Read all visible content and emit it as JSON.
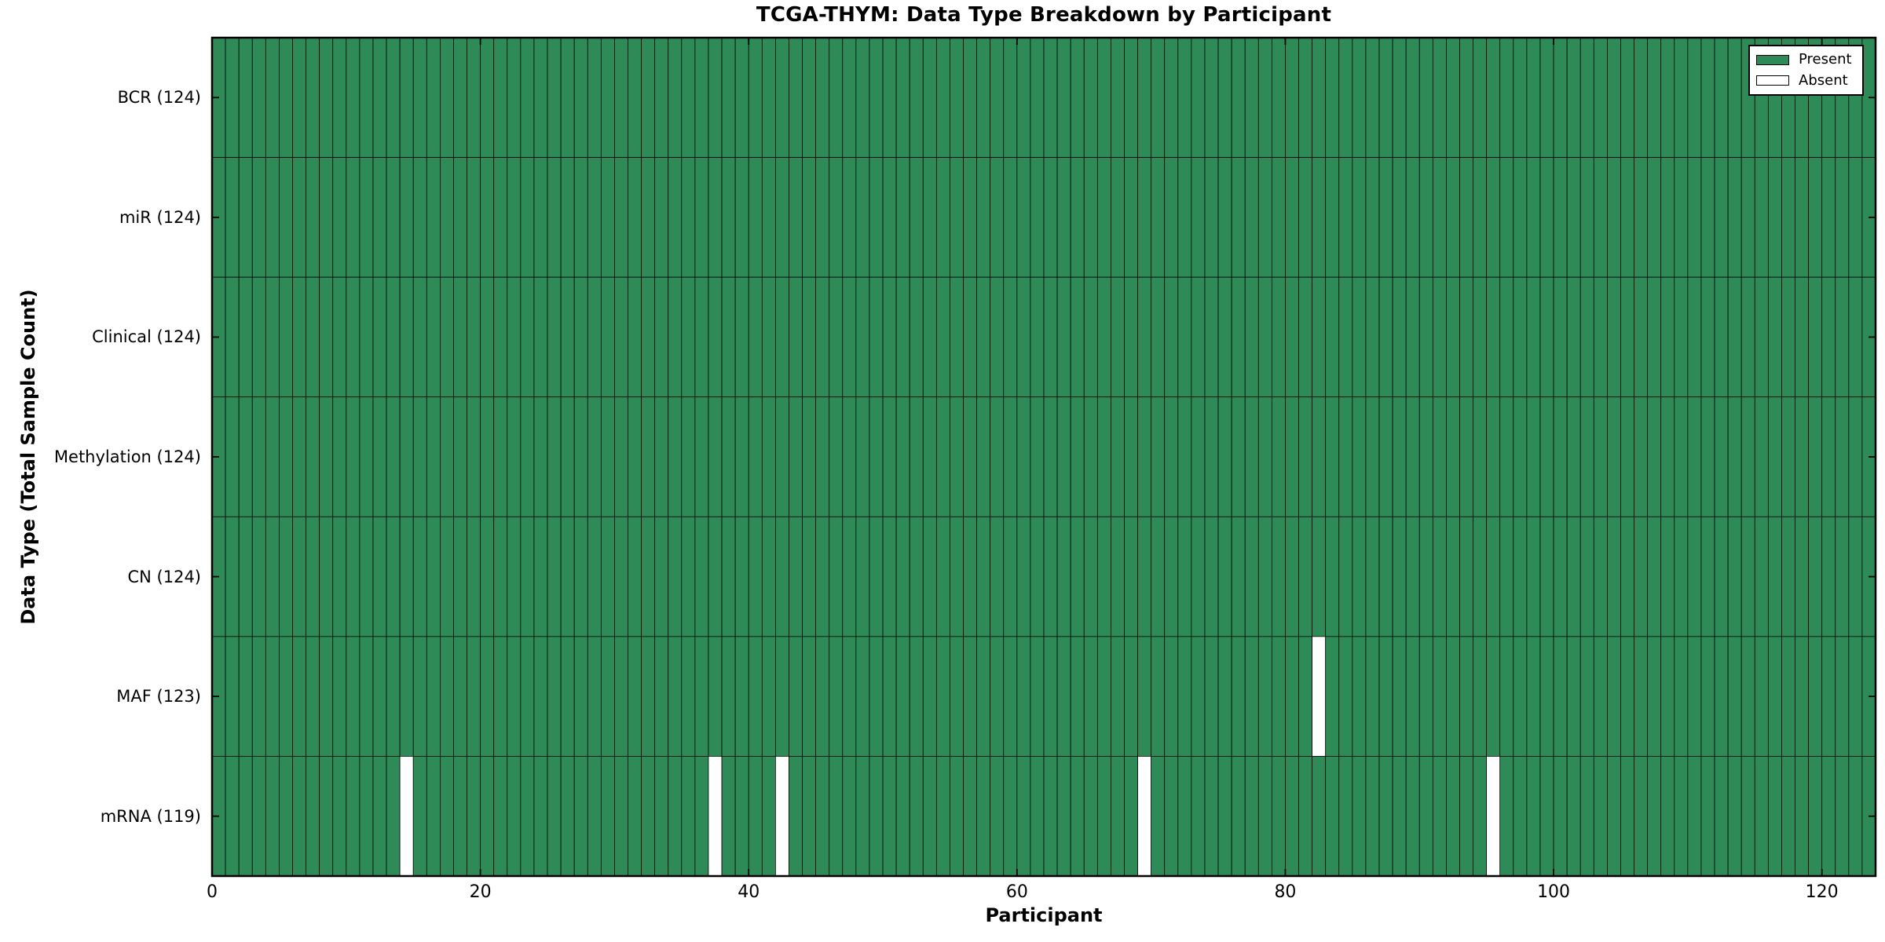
{
  "chart_data": {
    "type": "heatmap",
    "title": "TCGA-THYM: Data Type Breakdown by Participant",
    "xlabel": "Participant",
    "ylabel": "Data Type (Total Sample Count)",
    "x_ticks": [
      0,
      20,
      40,
      60,
      80,
      100,
      120
    ],
    "xlim": [
      0,
      124
    ],
    "n_participants": 124,
    "rows": [
      {
        "label": "BCR (124)",
        "data_type": "BCR",
        "total_samples": 124,
        "absent_participants": []
      },
      {
        "label": "miR (124)",
        "data_type": "miR",
        "total_samples": 124,
        "absent_participants": []
      },
      {
        "label": "Clinical (124)",
        "data_type": "Clinical",
        "total_samples": 124,
        "absent_participants": []
      },
      {
        "label": "Methylation (124)",
        "data_type": "Methylation",
        "total_samples": 124,
        "absent_participants": []
      },
      {
        "label": "CN (124)",
        "data_type": "CN",
        "total_samples": 124,
        "absent_participants": []
      },
      {
        "label": "MAF (123)",
        "data_type": "MAF",
        "total_samples": 123,
        "absent_participants": [
          82
        ]
      },
      {
        "label": "mRNA (119)",
        "data_type": "mRNA",
        "total_samples": 119,
        "absent_participants": [
          14,
          37,
          42,
          69,
          95
        ]
      }
    ],
    "legend": {
      "position": "upper right",
      "entries": [
        {
          "label": "Present",
          "color": "#2e8b57"
        },
        {
          "label": "Absent",
          "color": "#ffffff"
        }
      ]
    },
    "colors": {
      "present": "#2e8b57",
      "absent": "#ffffff",
      "cell_edge": "#000000",
      "border": "#000000",
      "background": "#ffffff",
      "text": "#000000"
    },
    "grid": false
  }
}
